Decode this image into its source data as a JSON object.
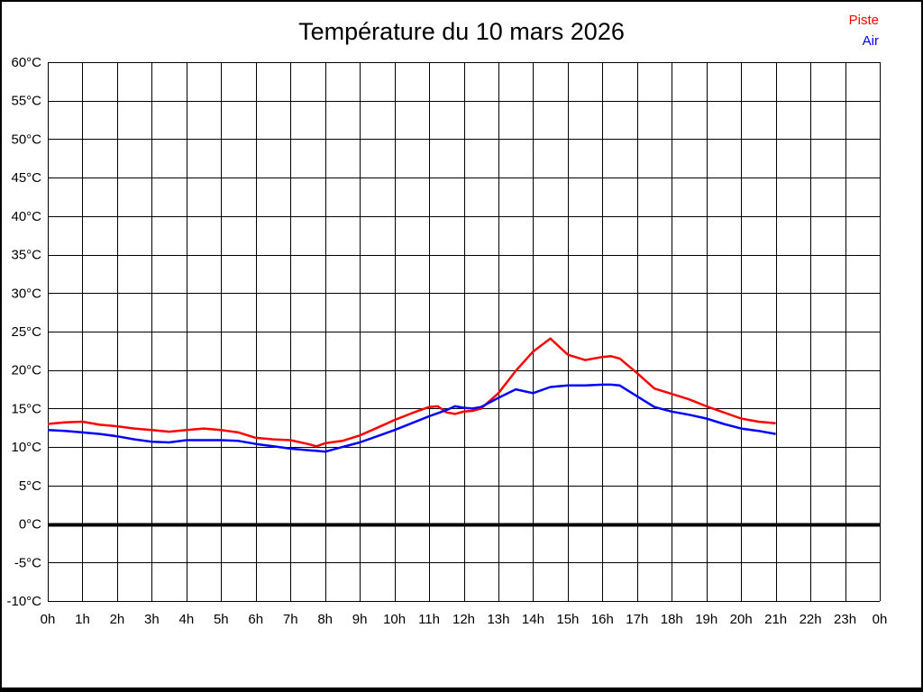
{
  "title": "Température du 10 mars 2026",
  "legend": {
    "items": [
      {
        "label": "Piste",
        "color": "#ff0000"
      },
      {
        "label": "Air",
        "color": "#0000ff"
      }
    ]
  },
  "colors": {
    "background": "#ffffff",
    "grid": "#000000",
    "zero_line": "#000000",
    "piste_line": "#ff0000",
    "air_line": "#0000ff"
  },
  "chart_data": {
    "type": "line",
    "title": "Température du 10 mars 2026",
    "xlabel": "",
    "ylabel": "",
    "xlim": [
      0,
      24
    ],
    "ylim": [
      -10,
      60
    ],
    "grid": true,
    "legend_position": "top-right",
    "zero_line_value": 0,
    "x_tick_labels": [
      "0h",
      "1h",
      "2h",
      "3h",
      "4h",
      "5h",
      "6h",
      "7h",
      "8h",
      "9h",
      "10h",
      "11h",
      "12h",
      "13h",
      "14h",
      "15h",
      "16h",
      "17h",
      "18h",
      "19h",
      "20h",
      "21h",
      "22h",
      "23h",
      "0h"
    ],
    "x_tick_values": [
      0,
      1,
      2,
      3,
      4,
      5,
      6,
      7,
      8,
      9,
      10,
      11,
      12,
      13,
      14,
      15,
      16,
      17,
      18,
      19,
      20,
      21,
      22,
      23,
      24
    ],
    "y_tick_labels": [
      "60°C",
      "55°C",
      "50°C",
      "45°C",
      "40°C",
      "35°C",
      "30°C",
      "25°C",
      "20°C",
      "15°C",
      "10°C",
      "5°C",
      "0°C",
      "-5°C",
      "-10°C"
    ],
    "y_tick_values": [
      60,
      55,
      50,
      45,
      40,
      35,
      30,
      25,
      20,
      15,
      10,
      5,
      0,
      -5,
      -10
    ],
    "x": [
      0,
      0.5,
      1,
      1.5,
      2,
      2.5,
      3,
      3.5,
      4,
      4.5,
      5,
      5.5,
      6,
      6.5,
      7,
      7.5,
      7.75,
      8,
      8.5,
      9,
      9.5,
      10,
      10.5,
      11,
      11.25,
      11.5,
      11.75,
      12,
      12.25,
      12.5,
      13,
      13.5,
      14,
      14.5,
      15,
      15.5,
      16,
      16.25,
      16.5,
      17,
      17.5,
      18,
      18.5,
      19,
      19.5,
      20,
      20.5,
      21
    ],
    "series": [
      {
        "name": "Piste",
        "color": "#ff0000",
        "values": [
          13.0,
          13.2,
          13.3,
          12.9,
          12.7,
          12.4,
          12.2,
          12.0,
          12.2,
          12.4,
          12.2,
          11.9,
          11.2,
          11.0,
          10.9,
          10.4,
          10.1,
          10.5,
          10.8,
          11.5,
          12.5,
          13.5,
          14.4,
          15.2,
          15.3,
          14.5,
          14.3,
          14.6,
          14.7,
          15.0,
          17.0,
          19.9,
          22.4,
          24.1,
          22.0,
          21.3,
          21.7,
          21.8,
          21.5,
          19.6,
          17.6,
          16.9,
          16.2,
          15.3,
          14.5,
          13.7,
          13.3,
          13.1
        ]
      },
      {
        "name": "Air",
        "color": "#0000ff",
        "values": [
          12.2,
          12.1,
          11.9,
          11.7,
          11.4,
          11.0,
          10.7,
          10.6,
          10.9,
          10.9,
          10.9,
          10.8,
          10.4,
          10.1,
          9.8,
          9.6,
          9.5,
          9.4,
          10.0,
          10.6,
          11.4,
          12.2,
          13.1,
          14.0,
          14.4,
          14.8,
          15.3,
          15.1,
          15.0,
          15.2,
          16.4,
          17.5,
          17.0,
          17.8,
          18.0,
          18.0,
          18.1,
          18.1,
          18.0,
          16.6,
          15.2,
          14.6,
          14.2,
          13.7,
          13.0,
          12.4,
          12.1,
          11.7
        ]
      }
    ]
  }
}
